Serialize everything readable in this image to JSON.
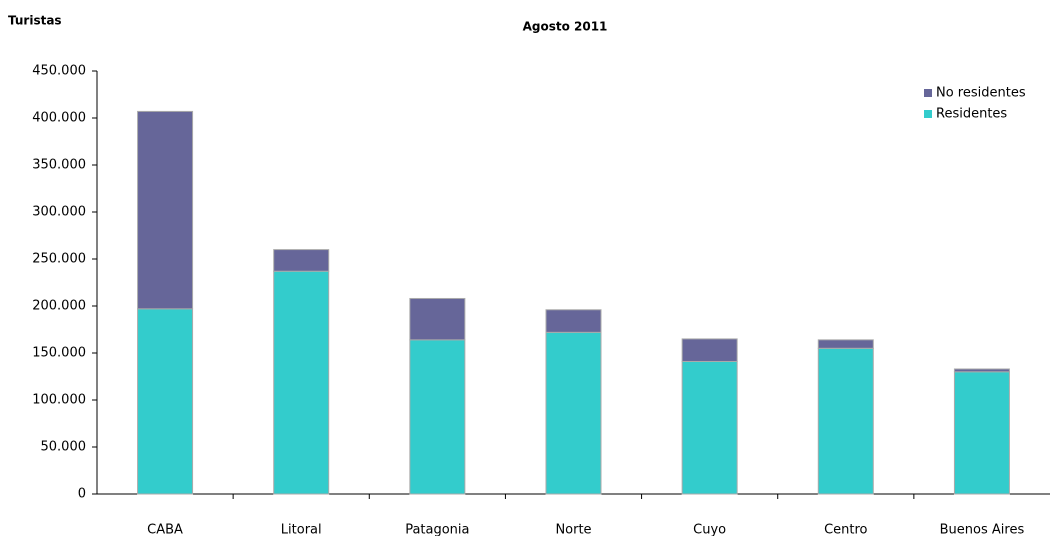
{
  "chart_data": {
    "type": "stacked_bar",
    "subtitle": "Agosto 2011",
    "y_label": "Turistas",
    "categories": [
      "CABA",
      "Litoral",
      "Patagonia",
      "Norte",
      "Cuyo",
      "Centro",
      "Buenos Aires"
    ],
    "series": [
      {
        "name": "Residentes",
        "color": "#33cccc",
        "values": [
          197000,
          237000,
          164000,
          172000,
          141000,
          155000,
          130000
        ]
      },
      {
        "name": "No residentes",
        "color": "#666699",
        "values": [
          210000,
          23000,
          44000,
          24000,
          24000,
          9000,
          3000
        ]
      }
    ],
    "ylim": [
      0,
      450000
    ],
    "yticks": [
      0,
      {
        "value": 50000,
        "label": "50.000"
      },
      {
        "value": 100000,
        "label": "100.000"
      },
      {
        "value": 150000,
        "label": "150.000"
      },
      {
        "value": 200000,
        "label": "200.000"
      },
      {
        "value": 250000,
        "label": "250.000"
      },
      {
        "value": 300000,
        "label": "300.000"
      },
      {
        "value": 350000,
        "label": "350.000"
      },
      {
        "value": 400000,
        "label": "400.000"
      },
      {
        "value": 450000,
        "label": "450.000"
      }
    ],
    "grid": false,
    "legend": "top-right"
  }
}
